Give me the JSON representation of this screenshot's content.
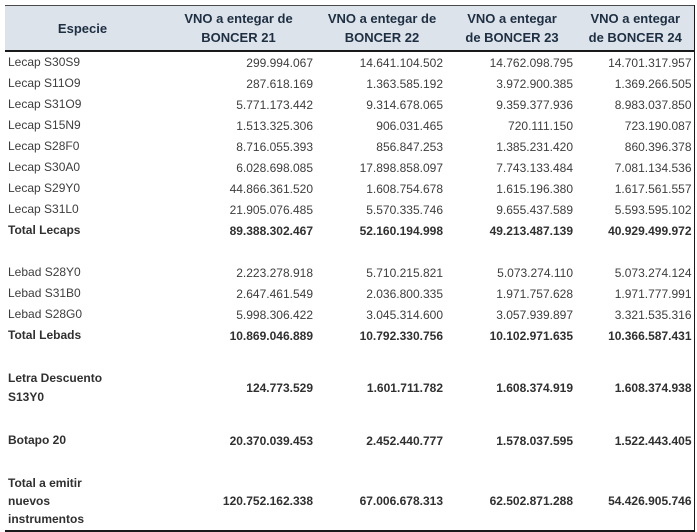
{
  "header": {
    "especie": "Especie",
    "cols": [
      {
        "line1": "VNO a entegar de",
        "line2": "BONCER 21"
      },
      {
        "line1": "VNO a entegar de",
        "line2": "BONCER 22"
      },
      {
        "line1": "VNO a entegar",
        "line2": "de BONCER 23"
      },
      {
        "line1": "VNO a entegar",
        "line2": "de BONCER 24"
      }
    ]
  },
  "colors": {
    "header_bg": "#dce3ea",
    "header_text": "#1e2f42",
    "body_text": "#3d3d3d",
    "border": "#1a1a1a"
  },
  "chart_data": {
    "type": "table",
    "title": "",
    "columns": [
      "Especie",
      "VNO a entegar de BONCER 21",
      "VNO a entegar de BONCER 22",
      "VNO a entegar de BONCER 23",
      "VNO a entegar de BONCER 24"
    ],
    "rows": [
      {
        "label": "Lecap S30S9",
        "values": [
          "299.994.067",
          "14.641.104.502",
          "14.762.098.795",
          "14.701.317.957"
        ],
        "style": "data"
      },
      {
        "label": "Lecap S11O9",
        "values": [
          "287.618.169",
          "1.363.585.192",
          "3.972.900.385",
          "1.369.266.505"
        ],
        "style": "data"
      },
      {
        "label": "Lecap S31O9",
        "values": [
          "5.771.173.442",
          "9.314.678.065",
          "9.359.377.936",
          "8.983.037.850"
        ],
        "style": "data"
      },
      {
        "label": "Lecap S15N9",
        "values": [
          "1.513.325.306",
          "906.031.465",
          "720.111.150",
          "723.190.087"
        ],
        "style": "data"
      },
      {
        "label": "Lecap S28F0",
        "values": [
          "8.716.055.393",
          "856.847.253",
          "1.385.231.420",
          "860.396.378"
        ],
        "style": "data"
      },
      {
        "label": "Lecap S30A0",
        "values": [
          "6.028.698.085",
          "17.898.858.097",
          "7.743.133.484",
          "7.081.134.536"
        ],
        "style": "data"
      },
      {
        "label": "Lecap S29Y0",
        "values": [
          "44.866.361.520",
          "1.608.754.678",
          "1.615.196.380",
          "1.617.561.557"
        ],
        "style": "data"
      },
      {
        "label": "Lecap S31L0",
        "values": [
          "21.905.076.485",
          "5.570.335.746",
          "9.655.437.589",
          "5.593.595.102"
        ],
        "style": "data"
      },
      {
        "label": "Total Lecaps",
        "values": [
          "89.388.302.467",
          "52.160.194.998",
          "49.213.487.139",
          "40.929.499.972"
        ],
        "style": "total"
      },
      {
        "style": "blank"
      },
      {
        "label": "Lebad S28Y0",
        "values": [
          "2.223.278.918",
          "5.710.215.821",
          "5.073.274.110",
          "5.073.274.124"
        ],
        "style": "data"
      },
      {
        "label": "Lebad S31B0",
        "values": [
          "2.647.461.549",
          "2.036.800.335",
          "1.971.757.628",
          "1.971.777.991"
        ],
        "style": "data"
      },
      {
        "label": "Lebad S28G0",
        "values": [
          "5.998.306.422",
          "3.045.314.600",
          "3.057.939.897",
          "3.321.535.316"
        ],
        "style": "data"
      },
      {
        "label": "Total Lebads",
        "values": [
          "10.869.046.889",
          "10.792.330.756",
          "10.102.971.635",
          "10.366.587.431"
        ],
        "style": "total"
      },
      {
        "style": "blank"
      },
      {
        "label": "Letra Descuento\nS13Y0",
        "values": [
          "124.773.529",
          "1.601.711.782",
          "1.608.374.919",
          "1.608.374.938"
        ],
        "style": "total tall2"
      },
      {
        "style": "blank"
      },
      {
        "label": "Botapo 20",
        "values": [
          "20.370.039.453",
          "2.452.440.777",
          "1.578.037.595",
          "1.522.443.405"
        ],
        "style": "total"
      },
      {
        "style": "blank"
      },
      {
        "label": "Total a emitir\nnuevos\ninstrumentos",
        "values": [
          "120.752.162.338",
          "67.006.678.313",
          "62.502.871.288",
          "54.426.905.746"
        ],
        "style": "total tall3"
      }
    ]
  }
}
